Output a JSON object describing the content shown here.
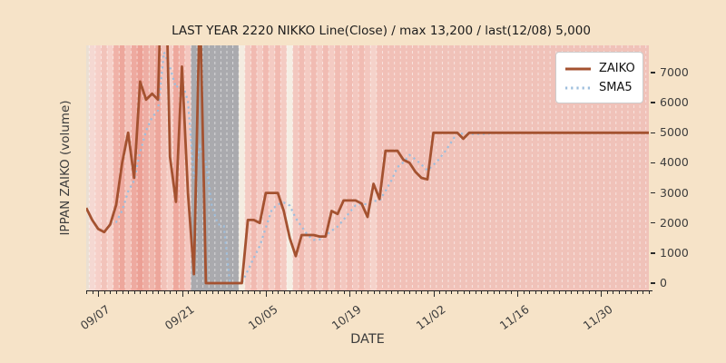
{
  "chart_data": {
    "type": "line",
    "title": "LAST YEAR 2220 NIKKO Line(Close) / max 13,200 / last(12/08) 5,000",
    "xlabel": "DATE",
    "ylabel": "IPPAN ZAIKO (volume)",
    "x_start_date": "09/05",
    "x_end_date": "12/08",
    "days_total": 95,
    "x_ticks": [
      {
        "label": "09/07",
        "day_index": 2
      },
      {
        "label": "09/21",
        "day_index": 16
      },
      {
        "label": "10/05",
        "day_index": 30
      },
      {
        "label": "10/19",
        "day_index": 44
      },
      {
        "label": "11/02",
        "day_index": 58
      },
      {
        "label": "11/16",
        "day_index": 72
      },
      {
        "label": "11/30",
        "day_index": 86
      }
    ],
    "y_ticks": [
      0,
      1000,
      2000,
      3000,
      4000,
      5000,
      6000,
      7000
    ],
    "ylim": [
      -250,
      7925
    ],
    "max_value": 13200,
    "last_value": 5000,
    "series": [
      {
        "name": "ZAIKO",
        "color": "#a45230",
        "style": "solid",
        "values": [
          2500,
          2100,
          1800,
          1700,
          1950,
          2600,
          4000,
          5000,
          3500,
          6700,
          6100,
          6300,
          6100,
          13200,
          4200,
          2700,
          7200,
          3000,
          300,
          9500,
          0,
          0,
          0,
          0,
          0,
          0,
          0,
          2100,
          2100,
          2000,
          3000,
          3000,
          3000,
          2400,
          1500,
          900,
          1600,
          1600,
          1600,
          1550,
          1550,
          2400,
          2300,
          2750,
          2750,
          2750,
          2650,
          2200,
          3300,
          2800,
          4400,
          4400,
          4400,
          4100,
          4000,
          3700,
          3500,
          3450,
          5000,
          5000,
          5000,
          5000,
          5000,
          4800,
          5000,
          5000,
          5000,
          5000,
          5000,
          5000,
          5000,
          5000,
          5000,
          5000,
          5000,
          5000,
          5000,
          5000,
          5000,
          5000,
          5000,
          5000,
          5000,
          5000,
          5000,
          5000,
          5000,
          5000,
          5000,
          5000,
          5000,
          5000,
          5000,
          5000,
          5000
        ]
      },
      {
        "name": "SMA5",
        "color": "#9dbedd",
        "style": "dotted",
        "derived": "5-day moving average of ZAIKO"
      }
    ],
    "background_bands": [
      [
        0,
        1,
        "#eadfd3"
      ],
      [
        1,
        2,
        "#f5d8d2"
      ],
      [
        2,
        3,
        "#f6d0c9"
      ],
      [
        3,
        4,
        "#f2c3ba"
      ],
      [
        4,
        5,
        "#f6d0c9"
      ],
      [
        5,
        6,
        "#f0b2a8"
      ],
      [
        6,
        7,
        "#eda79c"
      ],
      [
        7,
        8,
        "#f3c1b8"
      ],
      [
        8,
        9,
        "#eeaaa0"
      ],
      [
        9,
        10,
        "#eca095"
      ],
      [
        10,
        11,
        "#eeada3"
      ],
      [
        11,
        12,
        "#f0b5ab"
      ],
      [
        12,
        13,
        "#eda69b"
      ],
      [
        13,
        14,
        "#f2c2b9"
      ],
      [
        14,
        15,
        "#f5cdc5"
      ],
      [
        15,
        16,
        "#eea89d"
      ],
      [
        16,
        17,
        "#f0b1a7"
      ],
      [
        17,
        18,
        "#f4c7bf"
      ],
      [
        18,
        26,
        "#aaaaae"
      ],
      [
        26,
        27,
        "#f4ece1"
      ],
      [
        27,
        28,
        "#f4cbc3"
      ],
      [
        28,
        29,
        "#f1bab1"
      ],
      [
        29,
        30,
        "#f4cbc3"
      ],
      [
        30,
        31,
        "#f1bab1"
      ],
      [
        31,
        32,
        "#f4cbc3"
      ],
      [
        32,
        33,
        "#f1bab1"
      ],
      [
        33,
        34,
        "#f4cbc3"
      ],
      [
        34,
        35,
        "#f5eee4"
      ],
      [
        35,
        36,
        "#f3c7bf"
      ],
      [
        36,
        37,
        "#f1bcb3"
      ],
      [
        37,
        38,
        "#f4cbc3"
      ],
      [
        38,
        39,
        "#f1bcb3"
      ],
      [
        39,
        40,
        "#f4cbc3"
      ],
      [
        40,
        41,
        "#f1bcb3"
      ],
      [
        41,
        42,
        "#f4cbc3"
      ],
      [
        42,
        43,
        "#f1bcb3"
      ],
      [
        43,
        44,
        "#f3c7bf"
      ],
      [
        44,
        45,
        "#f1bcb3"
      ],
      [
        45,
        46,
        "#f3c7bf"
      ],
      [
        46,
        47,
        "#f1bcb3"
      ],
      [
        47,
        48,
        "#f3c7bf"
      ],
      [
        48,
        49,
        "#f5d2ca"
      ],
      [
        49,
        50,
        "#f2c1b8"
      ],
      [
        50,
        58,
        "#f1c0b7"
      ],
      [
        58,
        95,
        "#f0c2b9"
      ]
    ],
    "day_separator_color": "rgba(255,255,255,0.55)",
    "grid": "vertical day separators, dashed",
    "legend_position": "upper right"
  },
  "legend": {
    "items": [
      {
        "label": "ZAIKO"
      },
      {
        "label": "SMA5"
      }
    ]
  },
  "colors": {
    "figure_background": "#f6e3c8",
    "axis": "#1f1f1f",
    "tick_text": "#3d3d3d",
    "title_text": "#1c1c1c"
  }
}
